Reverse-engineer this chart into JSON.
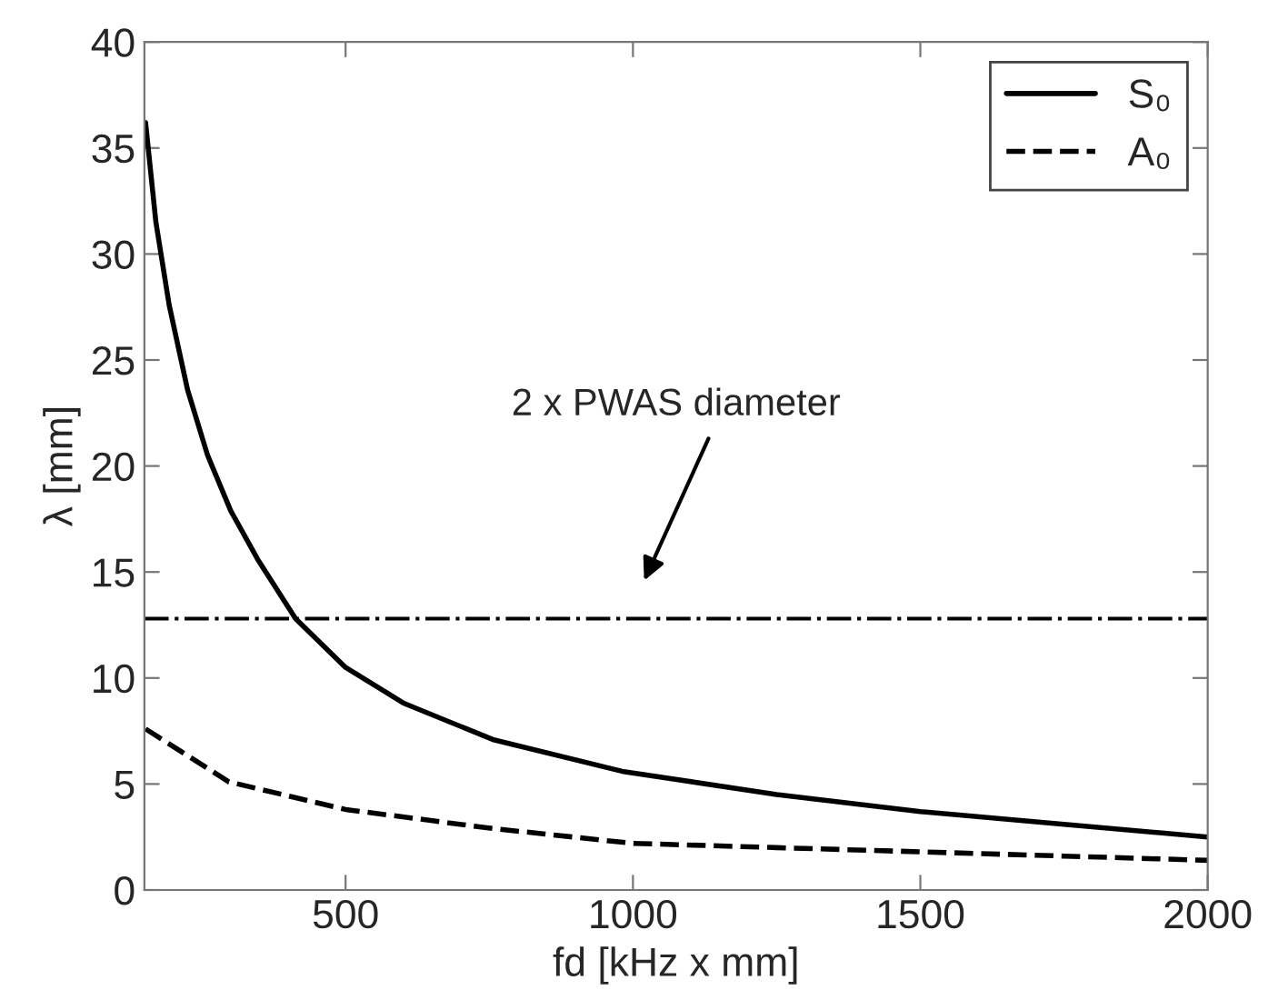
{
  "chart_data": {
    "type": "line",
    "xlabel": "fd [kHz x mm]",
    "ylabel": "λ [mm]",
    "xlim": [
      150,
      2000
    ],
    "xticks": [
      500,
      1000,
      1500,
      2000
    ],
    "ylim": [
      0,
      40
    ],
    "yticks": [
      0,
      5,
      10,
      15,
      20,
      25,
      30,
      35,
      40
    ],
    "grid": false,
    "legend": "top right",
    "series": [
      {
        "name": "S₀",
        "color": "#000000",
        "line_style": "solid",
        "x": [
          152,
          170,
          193,
          225,
          260,
          300,
          347,
          413,
          500,
          602,
          756,
          981,
          1250,
          1500,
          1750,
          2000
        ],
        "values": [
          36.2,
          31.5,
          27.6,
          23.6,
          20.5,
          17.9,
          15.6,
          12.8,
          10.5,
          8.8,
          7.1,
          5.6,
          4.5,
          3.7,
          3.1,
          2.5
        ]
      },
      {
        "name": "A₀",
        "color": "#000000",
        "line_style": "dashed",
        "x": [
          152,
          297,
          500,
          756,
          1000,
          1250,
          1500,
          1750,
          2000
        ],
        "values": [
          7.6,
          5.1,
          3.8,
          2.9,
          2.2,
          2.0,
          1.8,
          1.6,
          1.4
        ]
      }
    ],
    "ref_lines": [
      {
        "axis": "y",
        "value": 12.8,
        "color": "#000000",
        "line_style": "dashdot"
      }
    ],
    "annotations": [
      "2 x PWAS diameter"
    ]
  }
}
